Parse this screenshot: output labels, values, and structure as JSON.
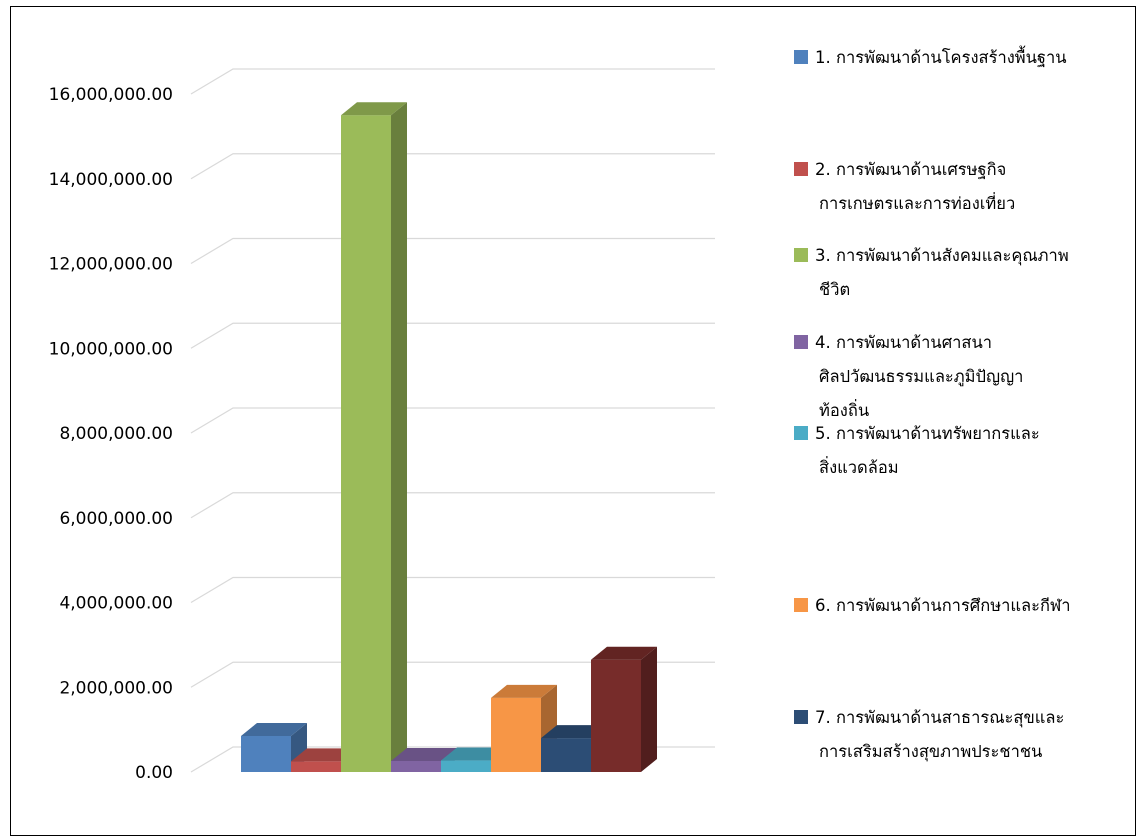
{
  "chart_data": {
    "type": "bar",
    "style": "3d-column",
    "ylim": [
      0,
      16000000
    ],
    "ytick_values": [
      0,
      2000000,
      4000000,
      6000000,
      8000000,
      10000000,
      12000000,
      14000000,
      16000000
    ],
    "ytick_labels": [
      "0.00",
      "2,000,000.00",
      "4,000,000.00",
      "6,000,000.00",
      "8,000,000.00",
      "10,000,000.00",
      "12,000,000.00",
      "14,000,000.00",
      "16,000,000.00"
    ],
    "grid": true,
    "legend_position": "right",
    "series": [
      {
        "name_lines": [
          "1. การพัฒนาด้านโครงสร้างพื้นฐาน"
        ],
        "value": 850000,
        "color": "#4F81BD"
      },
      {
        "name_lines": [
          "2. การพัฒนาด้านเศรษฐกิจ",
          "การเกษตรและการท่องเที่ยว"
        ],
        "value": 250000,
        "color": "#C0504D"
      },
      {
        "name_lines": [
          "3. การพัฒนาด้านสังคมและคุณภาพ",
          "ชีวิต"
        ],
        "value": 15500000,
        "color": "#9BBB59"
      },
      {
        "name_lines": [
          "4. การพัฒนาด้านศาสนา",
          "ศิลปวัฒนธรรมและภูมิปัญญา",
          "ท้องถิ่น"
        ],
        "value": 260000,
        "color": "#8064A2"
      },
      {
        "name_lines": [
          "5. การพัฒนาด้านทรัพยากรและ",
          "สิ่งแวดล้อม"
        ],
        "value": 270000,
        "color": "#4BACC6"
      },
      {
        "name_lines": [
          "6. การพัฒนาด้านการศึกษาและกีฬา"
        ],
        "value": 1750000,
        "color": "#F79646"
      },
      {
        "name_lines": [
          "7. การพัฒนาด้านสาธารณะสุขและ",
          "การเสริมสร้างสุขภาพประชาชน"
        ],
        "value": 800000,
        "color": "#2C4D75"
      },
      {
        "name_lines": [
          ""
        ],
        "value": 2650000,
        "color": "#772C2A"
      }
    ]
  }
}
